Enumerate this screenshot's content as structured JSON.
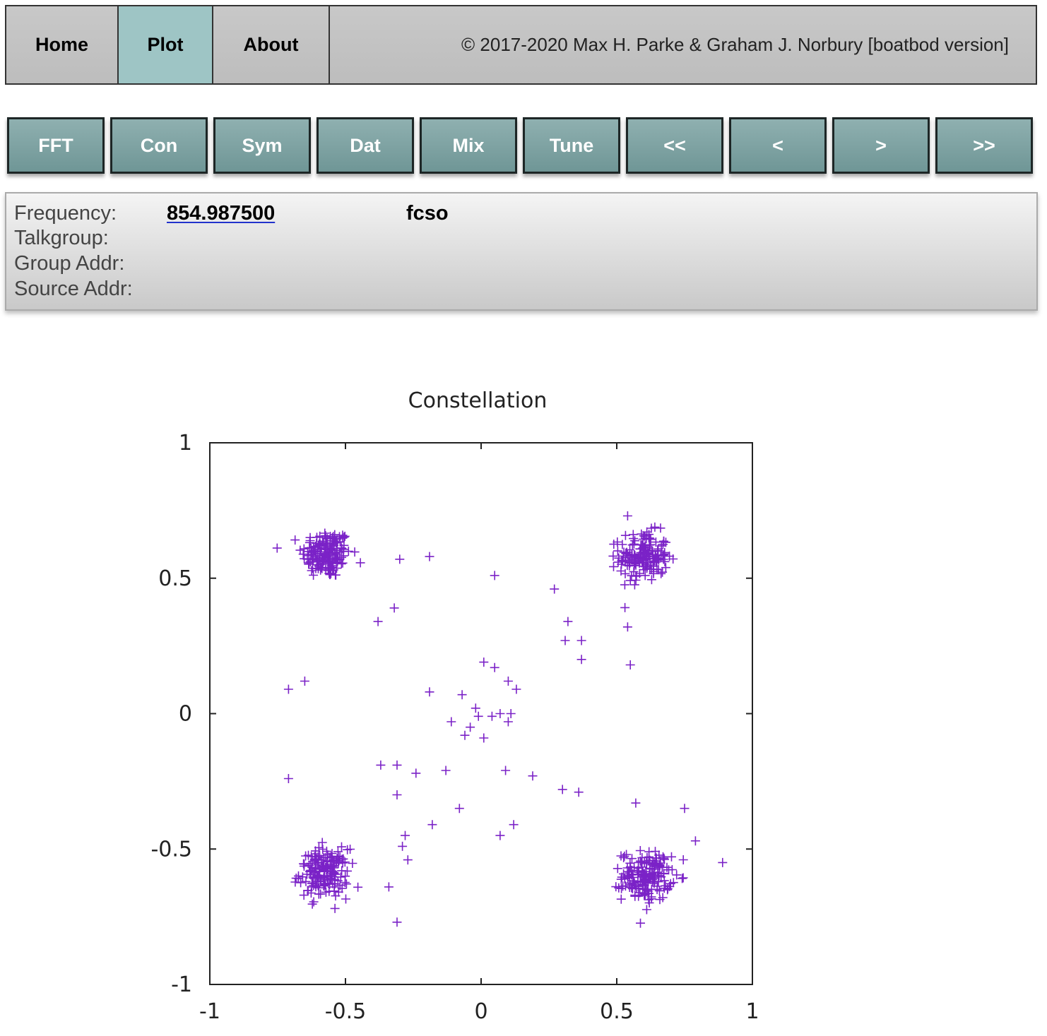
{
  "nav": {
    "home": "Home",
    "plot": "Plot",
    "about": "About",
    "copyright": "© 2017-2020 Max H. Parke & Graham J. Norbury [boatbod version]"
  },
  "buttons": [
    "FFT",
    "Con",
    "Sym",
    "Dat",
    "Mix",
    "Tune",
    "<<",
    "<",
    ">",
    ">>"
  ],
  "info": {
    "frequency_label": "Frequency:",
    "frequency_value": "854.987500",
    "system_name": "fcso",
    "talkgroup_label": "Talkgroup:",
    "group_addr_label": "Group Addr:",
    "source_addr_label": "Source Addr:"
  },
  "colors": {
    "point": "#7b22c7",
    "active_tab": "#9ec5c5",
    "button": "#7fa3a3"
  },
  "chart_data": {
    "type": "scatter",
    "title": "Constellation",
    "xlabel": "",
    "ylabel": "",
    "xlim": [
      -1,
      1
    ],
    "ylim": [
      -1,
      1
    ],
    "xticks": [
      "-1",
      "-0.5",
      "0",
      "0.5",
      "1"
    ],
    "yticks": [
      "-1",
      "-0.5",
      "0",
      "0.5",
      "1"
    ],
    "grid": false,
    "marker": "plus",
    "clusters": [
      {
        "center": [
          -0.57,
          0.59
        ],
        "count": 170,
        "spread": 0.045
      },
      {
        "center": [
          0.6,
          0.58
        ],
        "count": 170,
        "spread": 0.045
      },
      {
        "center": [
          -0.58,
          -0.59
        ],
        "count": 170,
        "spread": 0.045
      },
      {
        "center": [
          0.61,
          -0.6
        ],
        "count": 170,
        "spread": 0.045
      }
    ],
    "outliers": [
      [
        -0.71,
        0.09
      ],
      [
        -0.65,
        0.12
      ],
      [
        -0.71,
        -0.24
      ],
      [
        -0.3,
        0.57
      ],
      [
        -0.38,
        0.34
      ],
      [
        -0.32,
        0.39
      ],
      [
        0.05,
        0.51
      ],
      [
        -0.19,
        0.58
      ],
      [
        0.27,
        0.46
      ],
      [
        0.32,
        0.34
      ],
      [
        0.31,
        0.27
      ],
      [
        0.37,
        0.27
      ],
      [
        0.37,
        0.2
      ],
      [
        0.55,
        0.18
      ],
      [
        0.54,
        0.32
      ],
      [
        0.01,
        0.19
      ],
      [
        0.05,
        0.17
      ],
      [
        0.1,
        0.12
      ],
      [
        0.13,
        0.09
      ],
      [
        -0.19,
        0.08
      ],
      [
        -0.07,
        0.07
      ],
      [
        -0.11,
        -0.03
      ],
      [
        -0.02,
        0.02
      ],
      [
        -0.01,
        -0.01
      ],
      [
        0.04,
        -0.01
      ],
      [
        0.11,
        0.0
      ],
      [
        0.07,
        0.0
      ],
      [
        0.1,
        -0.03
      ],
      [
        -0.04,
        -0.05
      ],
      [
        -0.06,
        -0.08
      ],
      [
        0.01,
        -0.09
      ],
      [
        -0.37,
        -0.19
      ],
      [
        -0.31,
        -0.19
      ],
      [
        -0.24,
        -0.22
      ],
      [
        -0.13,
        -0.21
      ],
      [
        -0.31,
        -0.3
      ],
      [
        -0.18,
        -0.41
      ],
      [
        -0.08,
        -0.35
      ],
      [
        0.09,
        -0.21
      ],
      [
        0.19,
        -0.23
      ],
      [
        0.3,
        -0.28
      ],
      [
        0.36,
        -0.29
      ],
      [
        0.07,
        -0.45
      ],
      [
        0.12,
        -0.41
      ],
      [
        -0.28,
        -0.45
      ],
      [
        -0.29,
        -0.49
      ],
      [
        -0.27,
        -0.54
      ],
      [
        -0.34,
        -0.64
      ],
      [
        -0.31,
        -0.77
      ],
      [
        0.75,
        -0.35
      ],
      [
        0.79,
        -0.47
      ],
      [
        0.89,
        -0.55
      ],
      [
        0.57,
        -0.33
      ],
      [
        0.54,
        0.73
      ]
    ]
  }
}
